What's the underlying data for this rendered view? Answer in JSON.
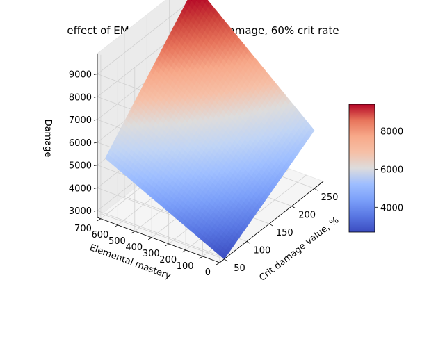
{
  "chart_data": {
    "type": "surface3d",
    "title": "effect of EM and Crit for melt damage, 60% crit rate",
    "xlabel": "Crit damage value, %",
    "ylabel": "Elemental mastery",
    "zlabel": "Damage",
    "colormap": "coolwarm",
    "xlim": [
      40,
      270
    ],
    "ylim": [
      0,
      720
    ],
    "zlim": [
      2700,
      9900
    ],
    "x_ticks": [
      50,
      100,
      150,
      200,
      250
    ],
    "y_ticks": [
      0,
      100,
      200,
      300,
      400,
      500,
      600,
      700
    ],
    "z_ticks": [
      3000,
      4000,
      5000,
      6000,
      7000,
      8000,
      9000
    ],
    "corners": [
      {
        "x": 50,
        "y": 0,
        "z": 2700
      },
      {
        "x": 250,
        "y": 0,
        "z": 5250
      },
      {
        "x": 50,
        "y": 700,
        "z": 5200
      },
      {
        "x": 250,
        "y": 700,
        "z": 9700
      }
    ],
    "colorbar": {
      "min": 2700,
      "max": 9400,
      "ticks": [
        4000,
        6000,
        8000
      ]
    }
  }
}
